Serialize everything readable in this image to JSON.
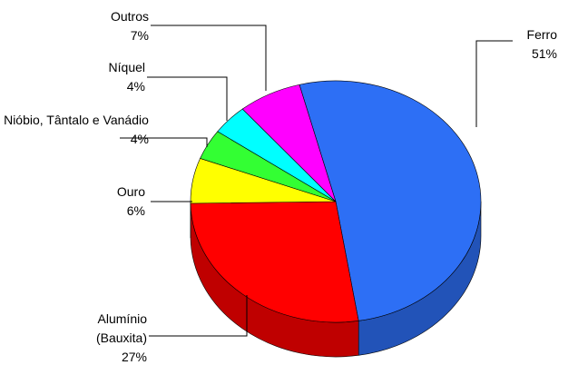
{
  "chart_data": {
    "type": "pie3d",
    "categories": [
      "Ferro",
      "Alumínio (Bauxita)",
      "Ouro",
      "Nióbio, Tântalo e Vanádio",
      "Níquel",
      "Outros"
    ],
    "values": [
      51,
      27,
      6,
      4,
      4,
      7
    ],
    "value_labels": [
      "51%",
      "27%",
      "6%",
      "4%",
      "4%",
      "7%"
    ],
    "colors": [
      "#2d6ff5",
      "#ff0000",
      "#ffff00",
      "#33ff33",
      "#00ffff",
      "#ff00ff"
    ]
  }
}
